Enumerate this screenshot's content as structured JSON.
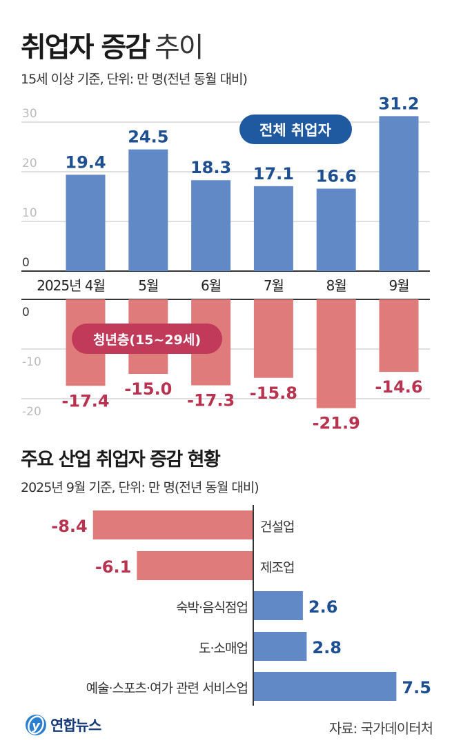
{
  "header": {
    "title_bold": "취업자 증감",
    "title_light": "추이",
    "subtitle": "15세 이상 기준, 단위: 만 명(전년 동월 대비)"
  },
  "section2": {
    "title": "주요 산업 취업자 증감 현황",
    "subtitle": "2025년 9월 기준, 단위: 만 명(전년 동월 대비)"
  },
  "footer": {
    "logo_text": "연합뉴스",
    "source": "자료: 국가데이터처"
  },
  "colors": {
    "blue_bar": "#6089c6",
    "blue_label": "#1d4f91",
    "blue_pill": "#1f5aa0",
    "red_bar": "#e07b7b",
    "red_label": "#b8334f",
    "red_pill": "#c23a5a",
    "grid": "#cccccc",
    "axis": "#333333"
  },
  "chart_data": [
    {
      "type": "bar",
      "title": "전체 취업자",
      "categories": [
        "2025년 4월",
        "5월",
        "6월",
        "7월",
        "8월",
        "9월"
      ],
      "values": [
        19.4,
        24.5,
        18.3,
        17.1,
        16.6,
        31.2
      ],
      "value_labels": [
        "19.4",
        "24.5",
        "18.3",
        "17.1",
        "16.6",
        "31.2"
      ],
      "ylim": [
        0,
        30
      ],
      "yticks": [
        0,
        10,
        20,
        30
      ],
      "ytick_labels": [
        "0",
        "10",
        "20",
        "30"
      ],
      "grid": true,
      "legend": "전체 취업자",
      "ylabel": "만 명"
    },
    {
      "type": "bar",
      "title": "청년층(15~29세)",
      "categories": [
        "2025년 4월",
        "5월",
        "6월",
        "7월",
        "8월",
        "9월"
      ],
      "values": [
        -17.4,
        -15.0,
        -17.3,
        -15.8,
        -21.9,
        -14.6
      ],
      "value_labels": [
        "-17.4",
        "-15.0",
        "-17.3",
        "-15.8",
        "-21.9",
        "-14.6"
      ],
      "ylim": [
        -20,
        0
      ],
      "yticks": [
        0,
        -10,
        -20
      ],
      "ytick_labels": [
        "0",
        "-10",
        "-20"
      ],
      "grid": true,
      "legend": "청년층(15~29세)",
      "ylabel": "만 명"
    },
    {
      "type": "bar",
      "orientation": "horizontal",
      "title": "주요 산업 취업자 증감 현황",
      "categories": [
        "건설업",
        "제조업",
        "숙박·음식점업",
        "도·소매업",
        "예술·스포츠·여가 관련 서비스업"
      ],
      "values": [
        -8.4,
        -6.1,
        2.6,
        2.8,
        7.5
      ],
      "value_labels": [
        "-8.4",
        "-6.1",
        "2.6",
        "2.8",
        "7.5"
      ],
      "xlim": [
        -8.4,
        7.5
      ],
      "grid": false
    }
  ]
}
